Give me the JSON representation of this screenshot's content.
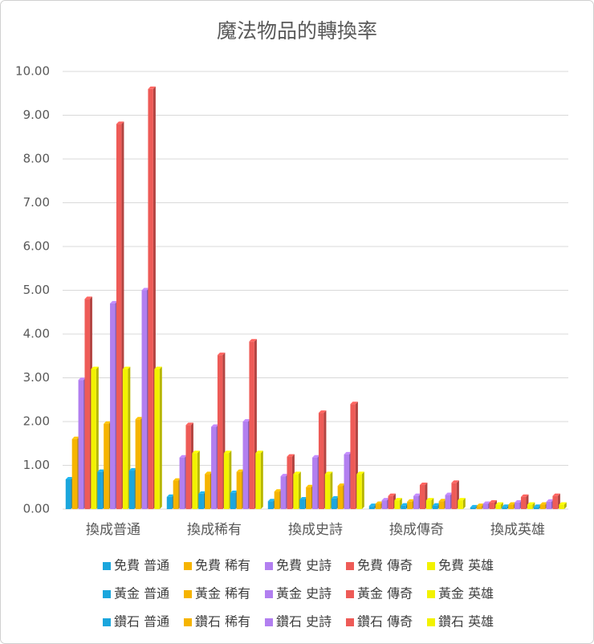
{
  "chart_data": {
    "type": "bar",
    "title": "魔法物品的轉換率",
    "categories": [
      "換成普通",
      "換成稀有",
      "換成史詩",
      "換成傳奇",
      "換成英雄"
    ],
    "ylim": [
      0,
      10
    ],
    "yticks": [
      {
        "value": 0,
        "label": "0.00"
      },
      {
        "value": 1,
        "label": "1.00"
      },
      {
        "value": 2,
        "label": "2.00"
      },
      {
        "value": 3,
        "label": "3.00"
      },
      {
        "value": 4,
        "label": "4.00"
      },
      {
        "value": 5,
        "label": "5.00"
      },
      {
        "value": 6,
        "label": "6.00"
      },
      {
        "value": 7,
        "label": "7.00"
      },
      {
        "value": 8,
        "label": "8.00"
      },
      {
        "value": 9,
        "label": "9.00"
      },
      {
        "value": 10,
        "label": "10.00"
      }
    ],
    "grid": true,
    "series": [
      {
        "name": "免費 普通",
        "color": "#1ba6dd",
        "values": [
          0.68,
          0.28,
          0.18,
          0.07,
          0.04
        ]
      },
      {
        "name": "免費 稀有",
        "color": "#f6b400",
        "values": [
          1.6,
          0.65,
          0.4,
          0.12,
          0.07
        ]
      },
      {
        "name": "免費 史詩",
        "color": "#b27ff0",
        "values": [
          2.95,
          1.18,
          0.75,
          0.2,
          0.12
        ]
      },
      {
        "name": "免費 傳奇",
        "color": "#ee5b57",
        "values": [
          4.8,
          1.92,
          1.2,
          0.3,
          0.15
        ]
      },
      {
        "name": "免費 英雄",
        "color": "#f2f200",
        "values": [
          3.2,
          1.28,
          0.8,
          0.2,
          0.1
        ]
      },
      {
        "name": "黃金 普通",
        "color": "#1ba6dd",
        "values": [
          0.85,
          0.35,
          0.22,
          0.08,
          0.05
        ]
      },
      {
        "name": "黃金 稀有",
        "color": "#f6b400",
        "values": [
          1.95,
          0.8,
          0.5,
          0.17,
          0.1
        ]
      },
      {
        "name": "黃金 史詩",
        "color": "#b27ff0",
        "values": [
          4.7,
          1.88,
          1.18,
          0.3,
          0.15
        ]
      },
      {
        "name": "黃金 傳奇",
        "color": "#ee5b57",
        "values": [
          8.8,
          3.52,
          2.2,
          0.55,
          0.28
        ]
      },
      {
        "name": "黃金 英雄",
        "color": "#f2f200",
        "values": [
          3.2,
          1.28,
          0.8,
          0.2,
          0.1
        ]
      },
      {
        "name": "鑽石 普通",
        "color": "#1ba6dd",
        "values": [
          0.88,
          0.37,
          0.24,
          0.08,
          0.05
        ]
      },
      {
        "name": "鑽石 稀有",
        "color": "#f6b400",
        "values": [
          2.05,
          0.85,
          0.53,
          0.18,
          0.1
        ]
      },
      {
        "name": "鑽石 史詩",
        "color": "#b27ff0",
        "values": [
          5.0,
          2.0,
          1.25,
          0.32,
          0.17
        ]
      },
      {
        "name": "鑽石 傳奇",
        "color": "#ee5b57",
        "values": [
          9.6,
          3.83,
          2.4,
          0.6,
          0.3
        ]
      },
      {
        "name": "鑽石 英雄",
        "color": "#f2f200",
        "values": [
          3.2,
          1.28,
          0.8,
          0.2,
          0.1
        ]
      }
    ],
    "legend": "bottom"
  }
}
